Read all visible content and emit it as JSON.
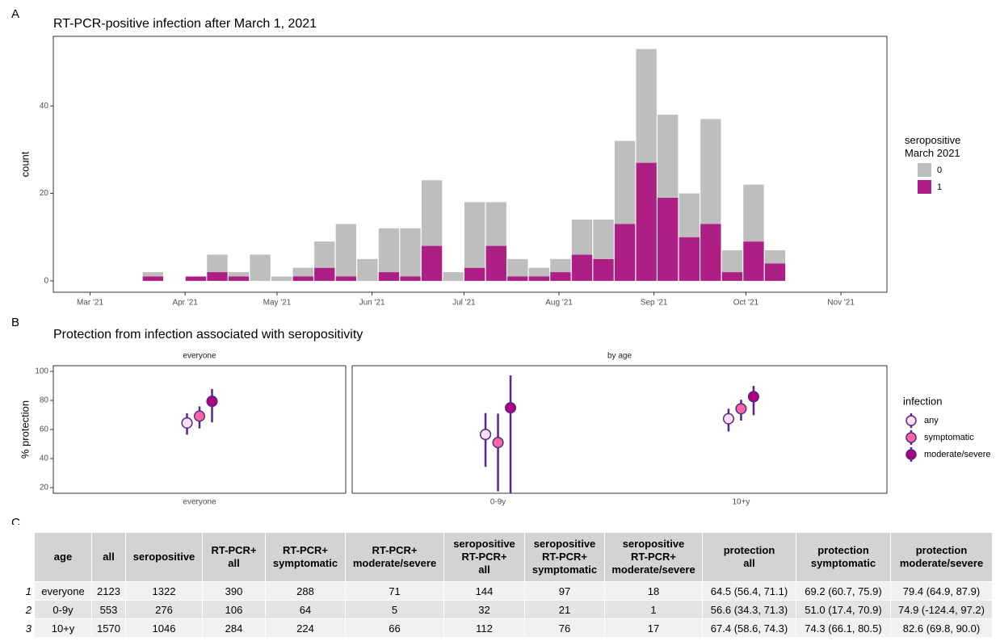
{
  "chart_data": [
    {
      "panel": "A",
      "type": "histogram",
      "title": "RT-PCR-positive infection after March 1, 2021",
      "y_label": "count",
      "stacked": true,
      "bins": [
        77,
        84,
        91,
        98,
        105,
        112,
        119,
        126,
        133,
        140,
        147,
        154,
        161,
        168,
        175,
        182,
        189,
        196,
        203,
        210,
        217,
        224,
        231,
        238,
        245,
        252,
        259,
        266,
        273,
        280,
        287
      ],
      "series": [
        {
          "name": "0",
          "color": "#bebebe",
          "values": [
            1,
            0,
            0,
            4,
            1,
            6,
            1,
            2,
            6,
            12,
            5,
            10,
            11,
            15,
            2,
            15,
            10,
            4,
            2,
            3,
            8,
            9,
            19,
            26,
            19,
            10,
            24,
            5,
            13,
            3
          ]
        },
        {
          "name": "1",
          "color": "#ae1f86",
          "values": [
            1,
            0,
            1,
            2,
            1,
            0,
            0,
            1,
            3,
            1,
            0,
            2,
            1,
            8,
            0,
            3,
            8,
            1,
            1,
            2,
            6,
            5,
            13,
            27,
            19,
            10,
            13,
            2,
            9,
            4
          ]
        }
      ],
      "legend_title": "seropositive March 2021",
      "xlim": [
        48,
        320
      ],
      "xticks": [
        {
          "value": 60,
          "label": "Mar '21"
        },
        {
          "value": 91,
          "label": "Apr '21"
        },
        {
          "value": 121,
          "label": "May '21"
        },
        {
          "value": 152,
          "label": "Jun '21"
        },
        {
          "value": 182,
          "label": "Jul '21"
        },
        {
          "value": 213,
          "label": "Aug '21"
        },
        {
          "value": 244,
          "label": "Sep '21"
        },
        {
          "value": 274,
          "label": "Oct '21"
        },
        {
          "value": 305,
          "label": "Nov '21"
        }
      ],
      "ylim": [
        -2.6,
        55.9
      ],
      "yticks": [
        0,
        20,
        40
      ],
      "grid": false
    },
    {
      "panel": "B",
      "type": "pointrange",
      "title": "Protection from infection associated with seropositivity",
      "y_label": "% protection",
      "facets": [
        {
          "title": "everyone",
          "categories": [
            "everyone"
          ]
        },
        {
          "title": "by age",
          "categories": [
            "0-9y",
            "10+y"
          ]
        }
      ],
      "series": [
        {
          "name": "any",
          "color": "#fde0ef",
          "values": [
            64.5,
            56.6,
            67.4
          ],
          "lower": [
            56.4,
            34.3,
            58.6
          ],
          "upper": [
            71.1,
            71.3,
            74.3
          ]
        },
        {
          "name": "symptomatic",
          "color": "#f768a1",
          "values": [
            69.2,
            51.0,
            74.3
          ],
          "lower": [
            60.7,
            17.4,
            66.1
          ],
          "upper": [
            75.9,
            70.9,
            80.5
          ]
        },
        {
          "name": "moderate/severe",
          "color": "#ae017e",
          "values": [
            79.4,
            74.9,
            82.6
          ],
          "lower": [
            64.9,
            -124.4,
            69.8
          ],
          "upper": [
            87.9,
            97.2,
            90.0
          ]
        }
      ],
      "error_color": "#54278f",
      "legend_title": "infection",
      "ylim": [
        16.1,
        103.9
      ],
      "yticks": [
        20,
        40,
        60,
        80,
        100
      ],
      "grid": false
    }
  ],
  "table": {
    "panel": "C",
    "header": [
      "age",
      "all",
      "seropositive",
      "RT-PCR+\nall",
      "RT-PCR+\nsymptomatic",
      "RT-PCR+\nmoderate/severe",
      "seropositive\nRT-PCR+\nall",
      "seropositive\nRT-PCR+\nsymptomatic",
      "seropositive\nRT-PCR+\nmoderate/severe",
      "protection\nall",
      "protection\nsymptomatic",
      "protection\nmoderate/severe"
    ],
    "rows": [
      [
        "1",
        "everyone",
        "2123",
        "1322",
        "390",
        "288",
        "71",
        "144",
        "97",
        "18",
        "64.5 (56.4, 71.1)",
        "69.2 (60.7, 75.9)",
        "79.4 (64.9, 87.9)"
      ],
      [
        "2",
        "0-9y",
        "553",
        "276",
        "106",
        "64",
        "5",
        "32",
        "21",
        "1",
        "56.6 (34.3, 71.3)",
        "51.0 (17.4, 70.9)",
        "74.9 (-124.4, 97.2)"
      ],
      [
        "3",
        "10+y",
        "1570",
        "1046",
        "284",
        "224",
        "66",
        "112",
        "76",
        "17",
        "67.4 (58.6, 74.3)",
        "74.3 (66.1, 80.5)",
        "82.6 (69.8, 90.0)"
      ]
    ]
  }
}
